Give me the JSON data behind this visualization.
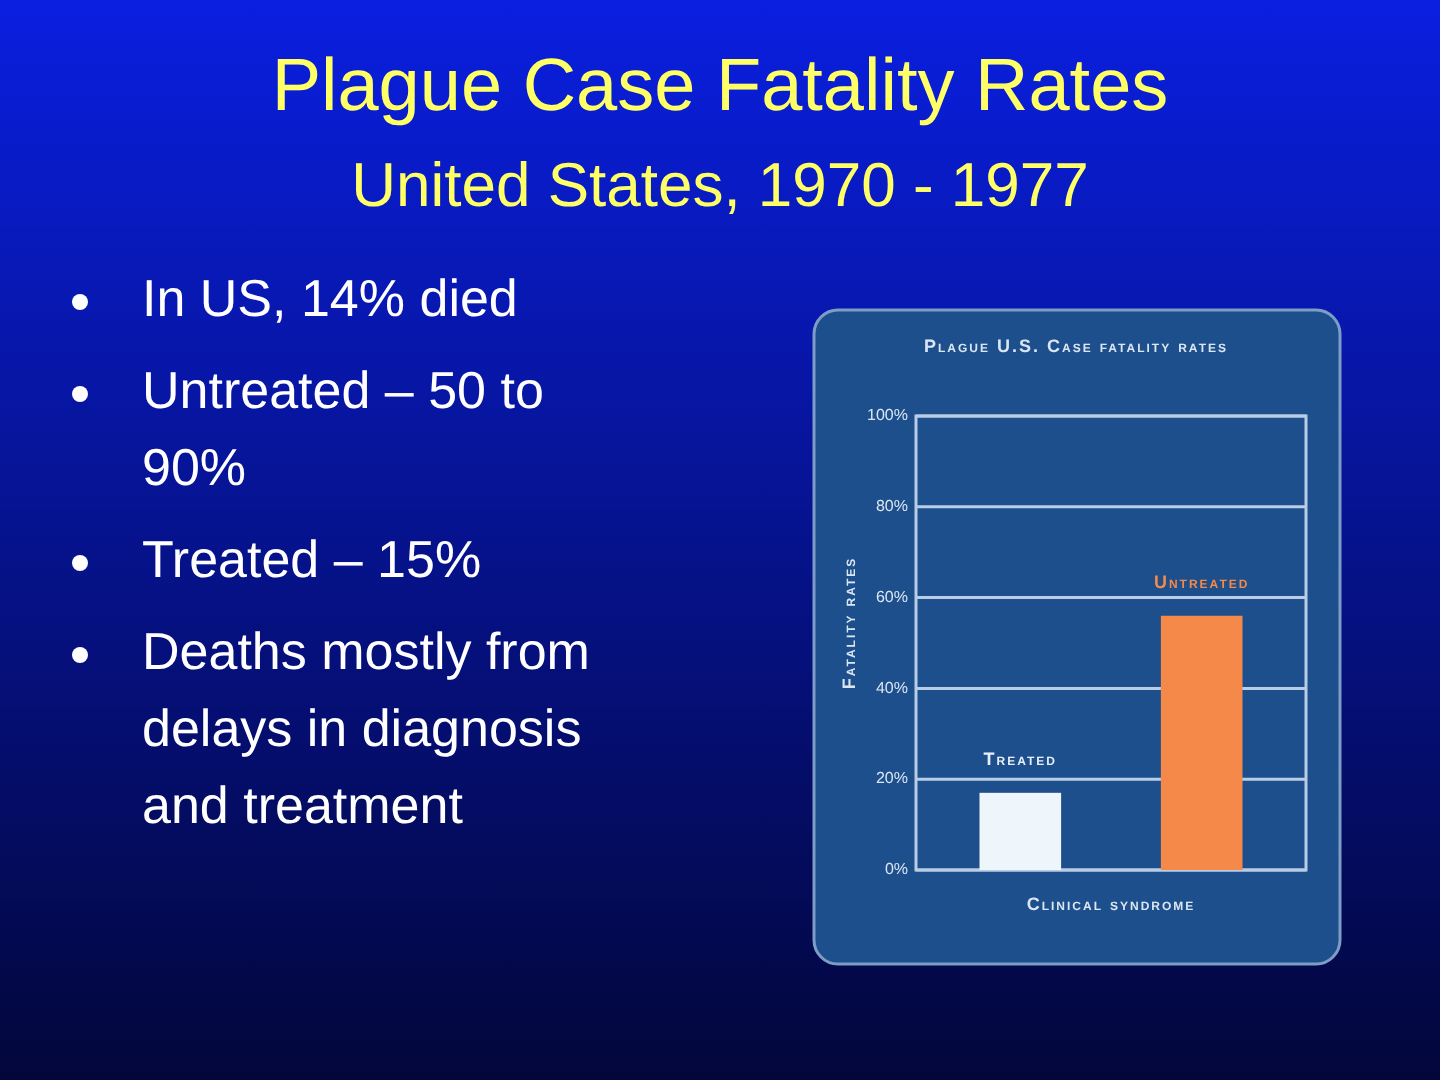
{
  "chart_data": {
    "type": "bar",
    "title": "Plague Case Fatality Rates",
    "subtitle": "United States, 1970 - 1977",
    "annotations": [
      "In US, 14% died",
      "Untreated – 50 to 90%",
      "Treated – 15%",
      "Deaths mostly from delays in diagnosis and treatment",
      "Plague U.S. Case fatality rates"
    ],
    "xlabel": "Clinical syndrome",
    "ylabel": "Fatality rates",
    "categories": [
      "Treated",
      "Untreated"
    ],
    "values": [
      17,
      56
    ],
    "colors": [
      "#eef6fb",
      "#f5894a"
    ],
    "ylim": [
      0,
      100
    ],
    "yticks": [
      {
        "value": 0,
        "label": "0%"
      },
      {
        "value": 20,
        "label": "20%"
      },
      {
        "value": 40,
        "label": "40%"
      },
      {
        "value": 60,
        "label": "60%"
      },
      {
        "value": 80,
        "label": "80%"
      },
      {
        "value": 100,
        "label": "100%"
      }
    ],
    "grid": "y"
  }
}
